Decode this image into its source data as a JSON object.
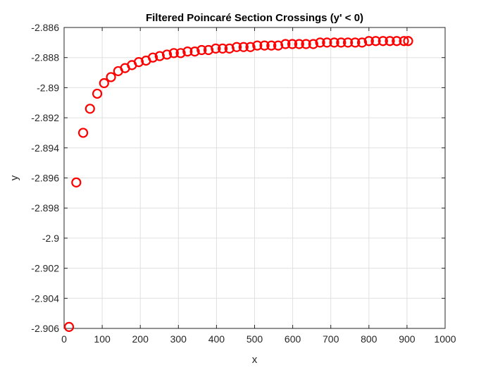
{
  "chart_data": {
    "type": "scatter",
    "title": "Filtered Poincaré Section Crossings (y' < 0)",
    "xlabel": "x",
    "ylabel": "y",
    "xlim": [
      0,
      1000
    ],
    "ylim": [
      -2.906,
      -2.886
    ],
    "xticks": [
      0,
      100,
      200,
      300,
      400,
      500,
      600,
      700,
      800,
      900,
      1000
    ],
    "xtick_labels": [
      "0",
      "100",
      "200",
      "300",
      "400",
      "500",
      "600",
      "700",
      "800",
      "900",
      "1000"
    ],
    "yticks": [
      -2.886,
      -2.888,
      -2.89,
      -2.892,
      -2.894,
      -2.896,
      -2.898,
      -2.9,
      -2.902,
      -2.904,
      -2.906
    ],
    "ytick_labels": [
      "-2.886",
      "-2.888",
      "-2.89",
      "-2.892",
      "-2.894",
      "-2.896",
      "-2.898",
      "-2.9",
      "-2.902",
      "-2.904",
      "-2.906"
    ],
    "grid": true,
    "marker": "circle-open",
    "marker_color": "#ff0000",
    "series": [
      {
        "x": [
          13,
          32,
          50,
          68,
          87,
          105,
          123,
          142,
          160,
          178,
          196,
          215,
          233,
          251,
          270,
          288,
          306,
          324,
          343,
          361,
          379,
          398,
          416,
          434,
          453,
          471,
          489,
          507,
          526,
          544,
          562,
          581,
          599,
          617,
          635,
          654,
          672,
          690,
          709,
          727,
          745,
          764,
          782,
          800,
          818,
          837,
          855,
          873,
          892,
          903
        ],
        "y": [
          -2.9059,
          -2.8963,
          -2.893,
          -2.8914,
          -2.8904,
          -2.8897,
          -2.8893,
          -2.8889,
          -2.8887,
          -2.8885,
          -2.8883,
          -2.8882,
          -2.888,
          -2.8879,
          -2.8878,
          -2.8877,
          -2.8877,
          -2.8876,
          -2.8876,
          -2.8875,
          -2.8875,
          -2.8874,
          -2.8874,
          -2.8874,
          -2.8873,
          -2.8873,
          -2.8873,
          -2.8872,
          -2.8872,
          -2.8872,
          -2.8872,
          -2.8871,
          -2.8871,
          -2.8871,
          -2.8871,
          -2.8871,
          -2.887,
          -2.887,
          -2.887,
          -2.887,
          -2.887,
          -2.887,
          -2.887,
          -2.8869,
          -2.8869,
          -2.8869,
          -2.8869,
          -2.8869,
          -2.8869,
          -2.8869
        ]
      }
    ]
  }
}
